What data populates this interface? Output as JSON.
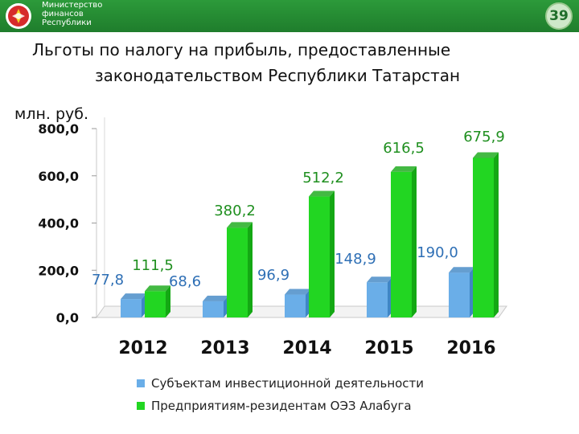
{
  "header": {
    "ministry_lines": [
      "Министерство",
      "финансов",
      "Республики"
    ],
    "page_number": "39"
  },
  "title_lines": [
    "Льготы по налогу на прибыль, предоставленные",
    "законодательством Республики Татарстан"
  ],
  "colors": {
    "header_green": "#1f7d2c",
    "series_blue": "#6aaee8",
    "series_green": "#22d622",
    "label_blue": "#2e6fb5",
    "label_green": "#1f8f1f"
  },
  "chart_data": {
    "type": "bar",
    "ylabel": "млн. руб.",
    "ylim": [
      0,
      800
    ],
    "y_ticks": [
      "0,0",
      "200,0",
      "400,0",
      "600,0",
      "800,0"
    ],
    "categories": [
      "2012",
      "2013",
      "2014",
      "2015",
      "2016"
    ],
    "series": [
      {
        "name": "Субъектам инвестиционной деятельности",
        "values": [
          77.8,
          68.6,
          96.9,
          148.9,
          190.0
        ],
        "labels": [
          "77,8",
          "68,6",
          "96,9",
          "148,9",
          "190,0"
        ]
      },
      {
        "name": "Предприятиям-резидентам ОЭЗ Алабуга",
        "values": [
          111.5,
          380.2,
          512.2,
          616.5,
          675.9
        ],
        "labels": [
          "111,5",
          "380,2",
          "512,2",
          "616,5",
          "675,9"
        ]
      }
    ],
    "legend_position": "bottom",
    "grid": false
  }
}
